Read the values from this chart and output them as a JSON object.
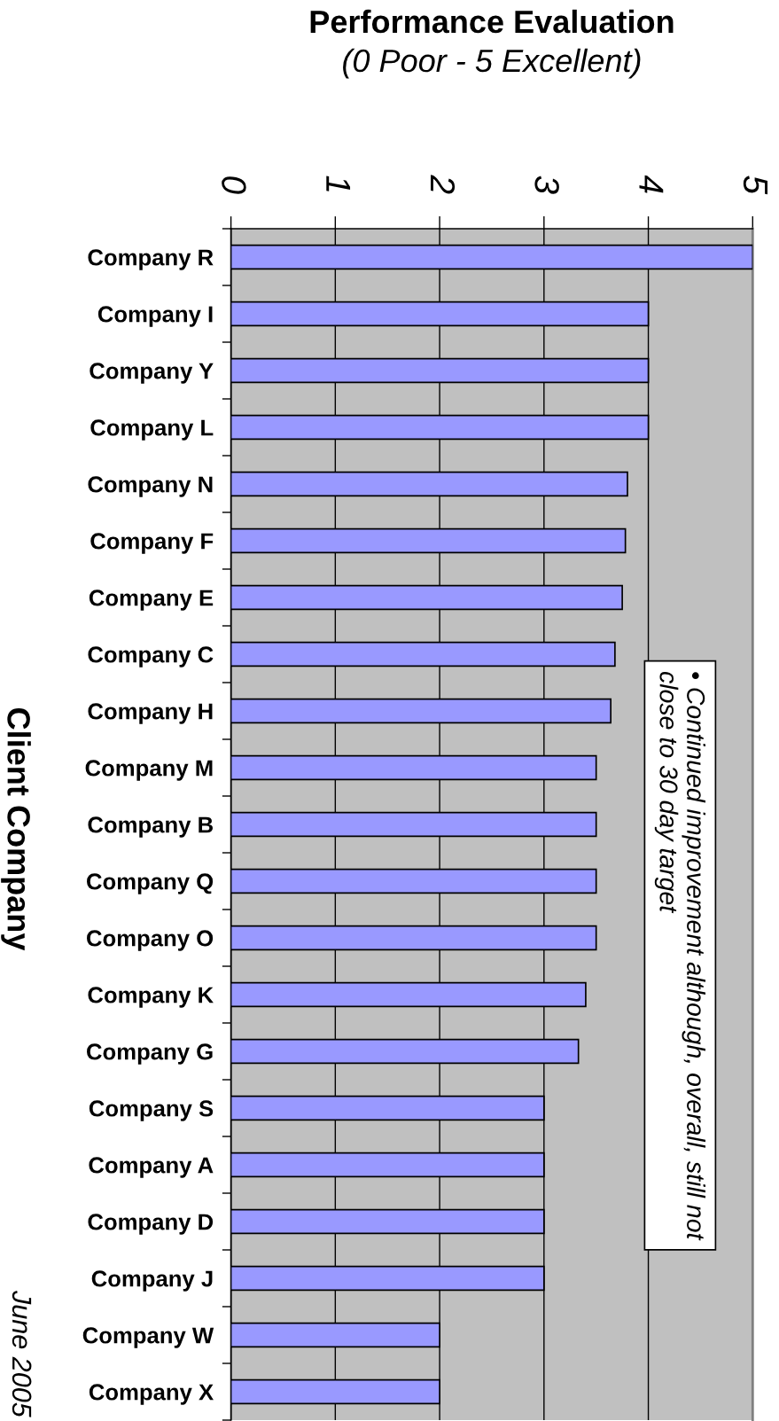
{
  "chart_data": {
    "type": "bar",
    "orientation": "horizontal",
    "title": "Performance Evaluation",
    "subtitle": "(0 Poor - 5 Excellent)",
    "ylabel": "Client Company",
    "categories": [
      "Company R",
      "Company I",
      "Company Y",
      "Company L",
      "Company N",
      "Company F",
      "Company E",
      "Company C",
      "Company H",
      "Company M",
      "Company B",
      "Company Q",
      "Company O",
      "Company K",
      "Company G",
      "Company S",
      "Company A",
      "Company D",
      "Company J",
      "Company W",
      "Company X"
    ],
    "values": [
      5,
      4,
      4,
      4,
      3.8,
      3.78,
      3.75,
      3.68,
      3.64,
      3.5,
      3.5,
      3.5,
      3.5,
      3.4,
      3.33,
      3,
      3,
      3,
      3,
      2,
      2
    ],
    "color": "#9999ff",
    "xlim": [
      0,
      5
    ],
    "xticks": [
      0,
      1,
      2,
      3,
      4,
      5
    ],
    "grid": "x",
    "annotations": [
      "• Continued improvement although, overall, still not close to 30 day target",
      "June 2005"
    ]
  }
}
